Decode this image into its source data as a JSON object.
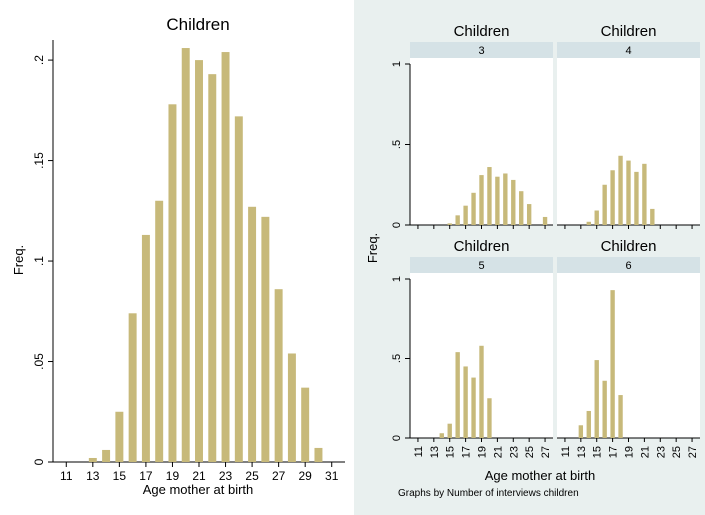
{
  "chart_data": [
    {
      "type": "bar",
      "title": "Children",
      "xlabel": "Age mother at birth",
      "ylabel": "Freq.",
      "xlim": [
        10,
        32
      ],
      "ylim": [
        0,
        0.21
      ],
      "x_ticks": [
        "11",
        "13",
        "15",
        "17",
        "19",
        "21",
        "23",
        "25",
        "27",
        "29",
        "31"
      ],
      "y_ticks": [
        "0",
        ".05",
        ".1",
        ".15",
        ".2"
      ],
      "x": [
        13,
        14,
        15,
        16,
        17,
        18,
        19,
        20,
        21,
        22,
        23,
        24,
        25,
        26,
        27,
        28,
        29,
        30
      ],
      "values": [
        0.002,
        0.006,
        0.025,
        0.074,
        0.113,
        0.13,
        0.178,
        0.206,
        0.2,
        0.193,
        0.204,
        0.172,
        0.127,
        0.122,
        0.086,
        0.054,
        0.037,
        0.007
      ],
      "bar_color": "#c7b97a",
      "grid": false
    },
    {
      "type": "bar",
      "layout": "2x2 small multiples",
      "xlabel": "Age mother at birth",
      "ylabel": "Freq.",
      "note": "Graphs by Number of interviews children",
      "xlim": [
        10,
        28
      ],
      "ylim": [
        0,
        1
      ],
      "x_ticks": [
        "11",
        "13",
        "15",
        "17",
        "19",
        "21",
        "23",
        "25",
        "27"
      ],
      "y_ticks": [
        "0",
        ".5",
        "1"
      ],
      "background": "#e9f0ef",
      "strip_color": "#d5e2e6",
      "panels": [
        {
          "title": "Children",
          "strip": "3",
          "x": [
            15,
            16,
            17,
            18,
            19,
            20,
            21,
            22,
            23,
            24,
            25,
            26,
            27
          ],
          "values": [
            0.01,
            0.06,
            0.12,
            0.2,
            0.31,
            0.36,
            0.3,
            0.32,
            0.28,
            0.21,
            0.13,
            0.0,
            0.05
          ]
        },
        {
          "title": "Children",
          "strip": "4",
          "x": [
            14,
            15,
            16,
            17,
            18,
            19,
            20,
            21,
            22
          ],
          "values": [
            0.02,
            0.09,
            0.25,
            0.34,
            0.43,
            0.4,
            0.33,
            0.38,
            0.1
          ]
        },
        {
          "title": "Children",
          "strip": "5",
          "x": [
            14,
            15,
            16,
            17,
            18,
            19,
            20
          ],
          "values": [
            0.03,
            0.09,
            0.54,
            0.45,
            0.38,
            0.58,
            0.25
          ]
        },
        {
          "title": "Children",
          "strip": "6",
          "x": [
            13,
            14,
            15,
            16,
            17,
            18
          ],
          "values": [
            0.08,
            0.17,
            0.49,
            0.36,
            0.93,
            0.27
          ]
        }
      ]
    }
  ]
}
